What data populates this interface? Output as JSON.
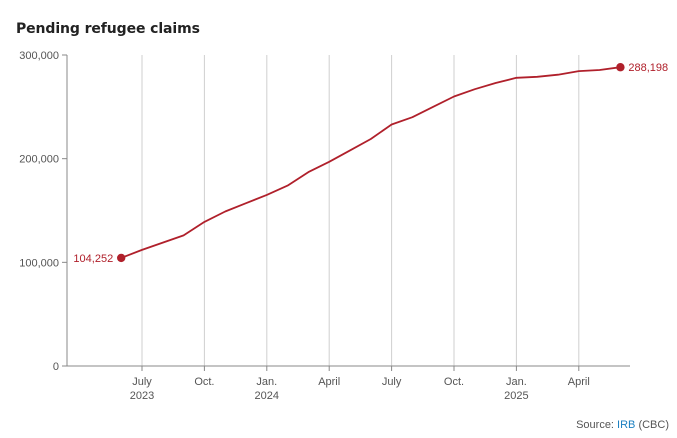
{
  "chart_data": {
    "type": "line",
    "title": "Pending refugee claims",
    "xlabel": "",
    "ylabel": "",
    "ylim": [
      0,
      300000
    ],
    "y_ticks": [
      0,
      100000,
      200000,
      300000
    ],
    "y_tick_labels": [
      "0",
      "100,000",
      "200,000",
      "300,000"
    ],
    "grid": "vertical",
    "x_ticks": [
      {
        "date": "2023-07",
        "label": "July",
        "year": "2023"
      },
      {
        "date": "2023-10",
        "label": "Oct.",
        "year": ""
      },
      {
        "date": "2024-01",
        "label": "Jan.",
        "year": "2024"
      },
      {
        "date": "2024-04",
        "label": "April",
        "year": ""
      },
      {
        "date": "2024-07",
        "label": "July",
        "year": ""
      },
      {
        "date": "2024-10",
        "label": "Oct.",
        "year": ""
      },
      {
        "date": "2025-01",
        "label": "Jan.",
        "year": "2025"
      },
      {
        "date": "2025-04",
        "label": "April",
        "year": ""
      }
    ],
    "series": [
      {
        "color": "#b0202b",
        "points": [
          {
            "x": "2023-06",
            "y": 104252
          },
          {
            "x": "2023-07",
            "y": 112000
          },
          {
            "x": "2023-08",
            "y": 119000
          },
          {
            "x": "2023-09",
            "y": 126000
          },
          {
            "x": "2023-10",
            "y": 139000
          },
          {
            "x": "2023-11",
            "y": 149000
          },
          {
            "x": "2023-12",
            "y": 157000
          },
          {
            "x": "2024-01",
            "y": 165000
          },
          {
            "x": "2024-02",
            "y": 174000
          },
          {
            "x": "2024-03",
            "y": 187000
          },
          {
            "x": "2024-04",
            "y": 197000
          },
          {
            "x": "2024-05",
            "y": 208000
          },
          {
            "x": "2024-06",
            "y": 219000
          },
          {
            "x": "2024-07",
            "y": 233000
          },
          {
            "x": "2024-08",
            "y": 240000
          },
          {
            "x": "2024-09",
            "y": 250000
          },
          {
            "x": "2024-10",
            "y": 260000
          },
          {
            "x": "2024-11",
            "y": 267000
          },
          {
            "x": "2024-12",
            "y": 273000
          },
          {
            "x": "2025-01",
            "y": 278000
          },
          {
            "x": "2025-02",
            "y": 279000
          },
          {
            "x": "2025-03",
            "y": 281000
          },
          {
            "x": "2025-04",
            "y": 284500
          },
          {
            "x": "2025-05",
            "y": 285500
          },
          {
            "x": "2025-06",
            "y": 288198
          }
        ]
      }
    ],
    "annotations": [
      {
        "x": "2023-06",
        "y": 104252,
        "text": "104,252",
        "position": "left"
      },
      {
        "x": "2025-06",
        "y": 288198,
        "text": "288,198",
        "position": "right"
      }
    ]
  },
  "source": {
    "prefix": "Source: ",
    "link": "IRB",
    "suffix": " (CBC)"
  }
}
